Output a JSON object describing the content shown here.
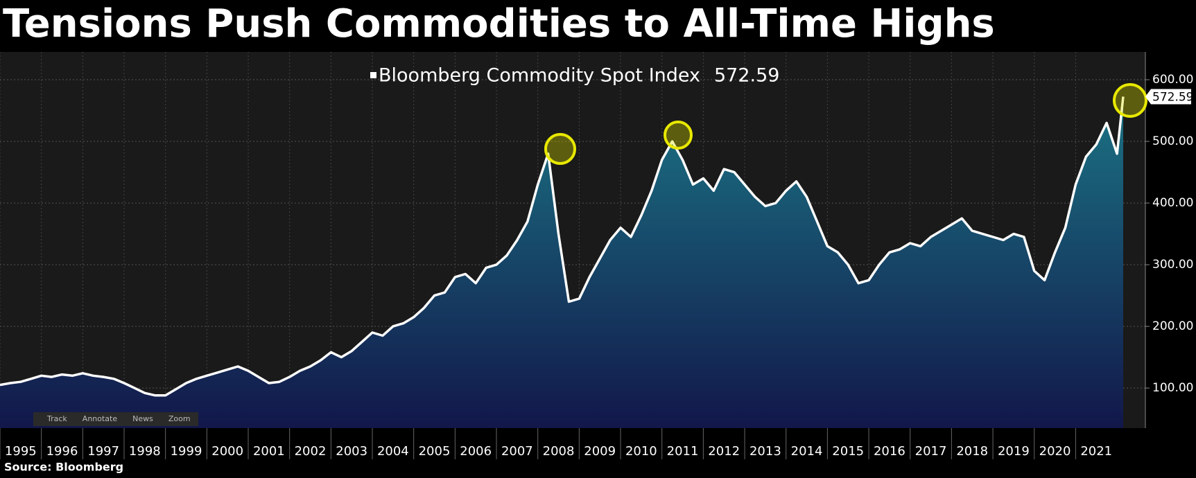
{
  "chart_data": {
    "type": "area",
    "title": "Tensions Push Commodities to All-Time Highs",
    "source": "Source: Bloomberg",
    "toolbar": [
      "Track",
      "Annotate",
      "News",
      "Zoom"
    ],
    "xlim": [
      1995,
      2022.2
    ],
    "xticks": [
      1995,
      1996,
      1997,
      1998,
      1999,
      2000,
      2001,
      2002,
      2003,
      2004,
      2005,
      2006,
      2007,
      2008,
      2009,
      2010,
      2011,
      2012,
      2013,
      2014,
      2015,
      2016,
      2017,
      2018,
      2019,
      2020,
      2021
    ],
    "ylim": [
      35,
      645
    ],
    "yticks": [
      {
        "value": 100,
        "label": "100.00"
      },
      {
        "value": 200,
        "label": "200.00"
      },
      {
        "value": 300,
        "label": "300.00"
      },
      {
        "value": 400,
        "label": "400.00"
      },
      {
        "value": 500,
        "label": "500.00"
      },
      {
        "value": 600,
        "label": "600.00"
      }
    ],
    "grid": true,
    "x": [
      1995,
      1995.25,
      1995.5,
      1995.75,
      1996,
      1996.25,
      1996.5,
      1996.75,
      1997,
      1997.25,
      1997.5,
      1997.75,
      1998,
      1998.25,
      1998.5,
      1998.75,
      1999,
      1999.25,
      1999.5,
      1999.75,
      2000,
      2000.25,
      2000.5,
      2000.75,
      2001,
      2001.25,
      2001.5,
      2001.75,
      2002,
      2002.25,
      2002.5,
      2002.75,
      2003,
      2003.25,
      2003.5,
      2003.75,
      2004,
      2004.25,
      2004.5,
      2004.75,
      2005,
      2005.25,
      2005.5,
      2005.75,
      2006,
      2006.25,
      2006.5,
      2006.75,
      2007,
      2007.25,
      2007.5,
      2007.75,
      2008,
      2008.25,
      2008.5,
      2008.75,
      2009,
      2009.25,
      2009.5,
      2009.75,
      2010,
      2010.25,
      2010.5,
      2010.75,
      2011,
      2011.25,
      2011.5,
      2011.75,
      2012,
      2012.25,
      2012.5,
      2012.75,
      2013,
      2013.25,
      2013.5,
      2013.75,
      2014,
      2014.25,
      2014.5,
      2014.75,
      2015,
      2015.25,
      2015.5,
      2015.75,
      2016,
      2016.25,
      2016.5,
      2016.75,
      2017,
      2017.25,
      2017.5,
      2017.75,
      2018,
      2018.25,
      2018.5,
      2018.75,
      2019,
      2019.25,
      2019.5,
      2019.75,
      2020,
      2020.25,
      2020.5,
      2020.75,
      2021,
      2021.25,
      2021.5,
      2021.75,
      2022,
      2022.15
    ],
    "series": [
      {
        "name": "Bloomberg Commodity Spot Index",
        "color": "#ffffff",
        "values": [
          105,
          108,
          110,
          115,
          120,
          118,
          122,
          120,
          124,
          120,
          118,
          115,
          108,
          100,
          92,
          88,
          88,
          98,
          108,
          115,
          120,
          125,
          130,
          135,
          128,
          118,
          108,
          110,
          118,
          128,
          135,
          145,
          158,
          150,
          160,
          175,
          190,
          185,
          200,
          205,
          215,
          230,
          250,
          255,
          280,
          285,
          270,
          295,
          300,
          315,
          340,
          370,
          430,
          480,
          350,
          240,
          245,
          280,
          310,
          340,
          360,
          345,
          380,
          420,
          470,
          500,
          470,
          430,
          440,
          420,
          455,
          450,
          430,
          410,
          395,
          400,
          420,
          435,
          410,
          370,
          330,
          320,
          300,
          270,
          275,
          300,
          320,
          325,
          335,
          330,
          345,
          355,
          365,
          375,
          355,
          350,
          345,
          340,
          350,
          345,
          290,
          275,
          320,
          360,
          430,
          475,
          495,
          530,
          480,
          572.59
        ]
      }
    ]
  }
}
